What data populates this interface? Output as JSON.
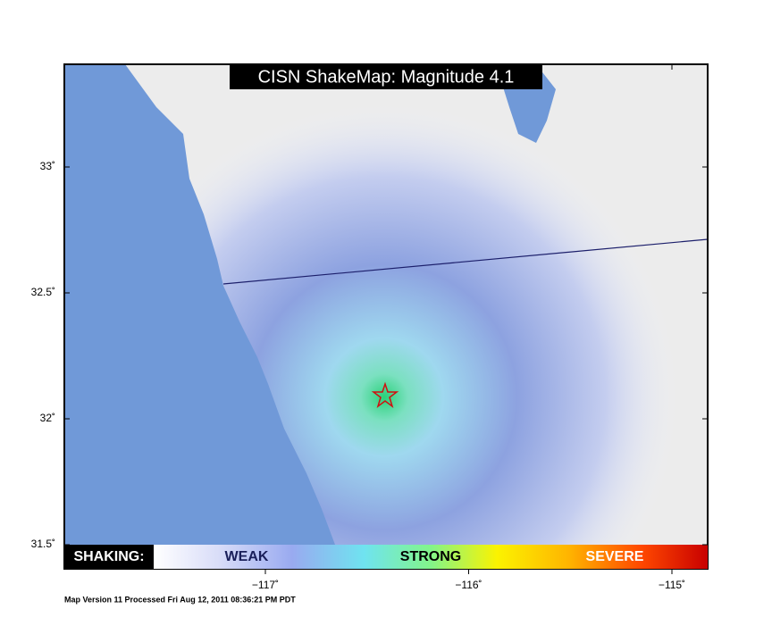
{
  "map": {
    "title": "CISN ShakeMap: Magnitude 4.1",
    "lat_ticks": [
      {
        "value": 33,
        "label": "33˚"
      },
      {
        "value": 32.5,
        "label": "32.5˚"
      },
      {
        "value": 32,
        "label": "32˚"
      },
      {
        "value": 31.5,
        "label": "31.5˚"
      }
    ],
    "lon_ticks": [
      {
        "value": -117,
        "label": "−117˚"
      },
      {
        "value": -116,
        "label": "−116˚"
      },
      {
        "value": -115,
        "label": "−115˚"
      }
    ],
    "legend": {
      "heading": "SHAKING:",
      "labels": [
        "WEAK",
        "STRONG",
        "SEVERE"
      ]
    },
    "footer": "Map Version 11 Processed Fri Aug 12, 2011 08:36:21 PM PDT"
  }
}
